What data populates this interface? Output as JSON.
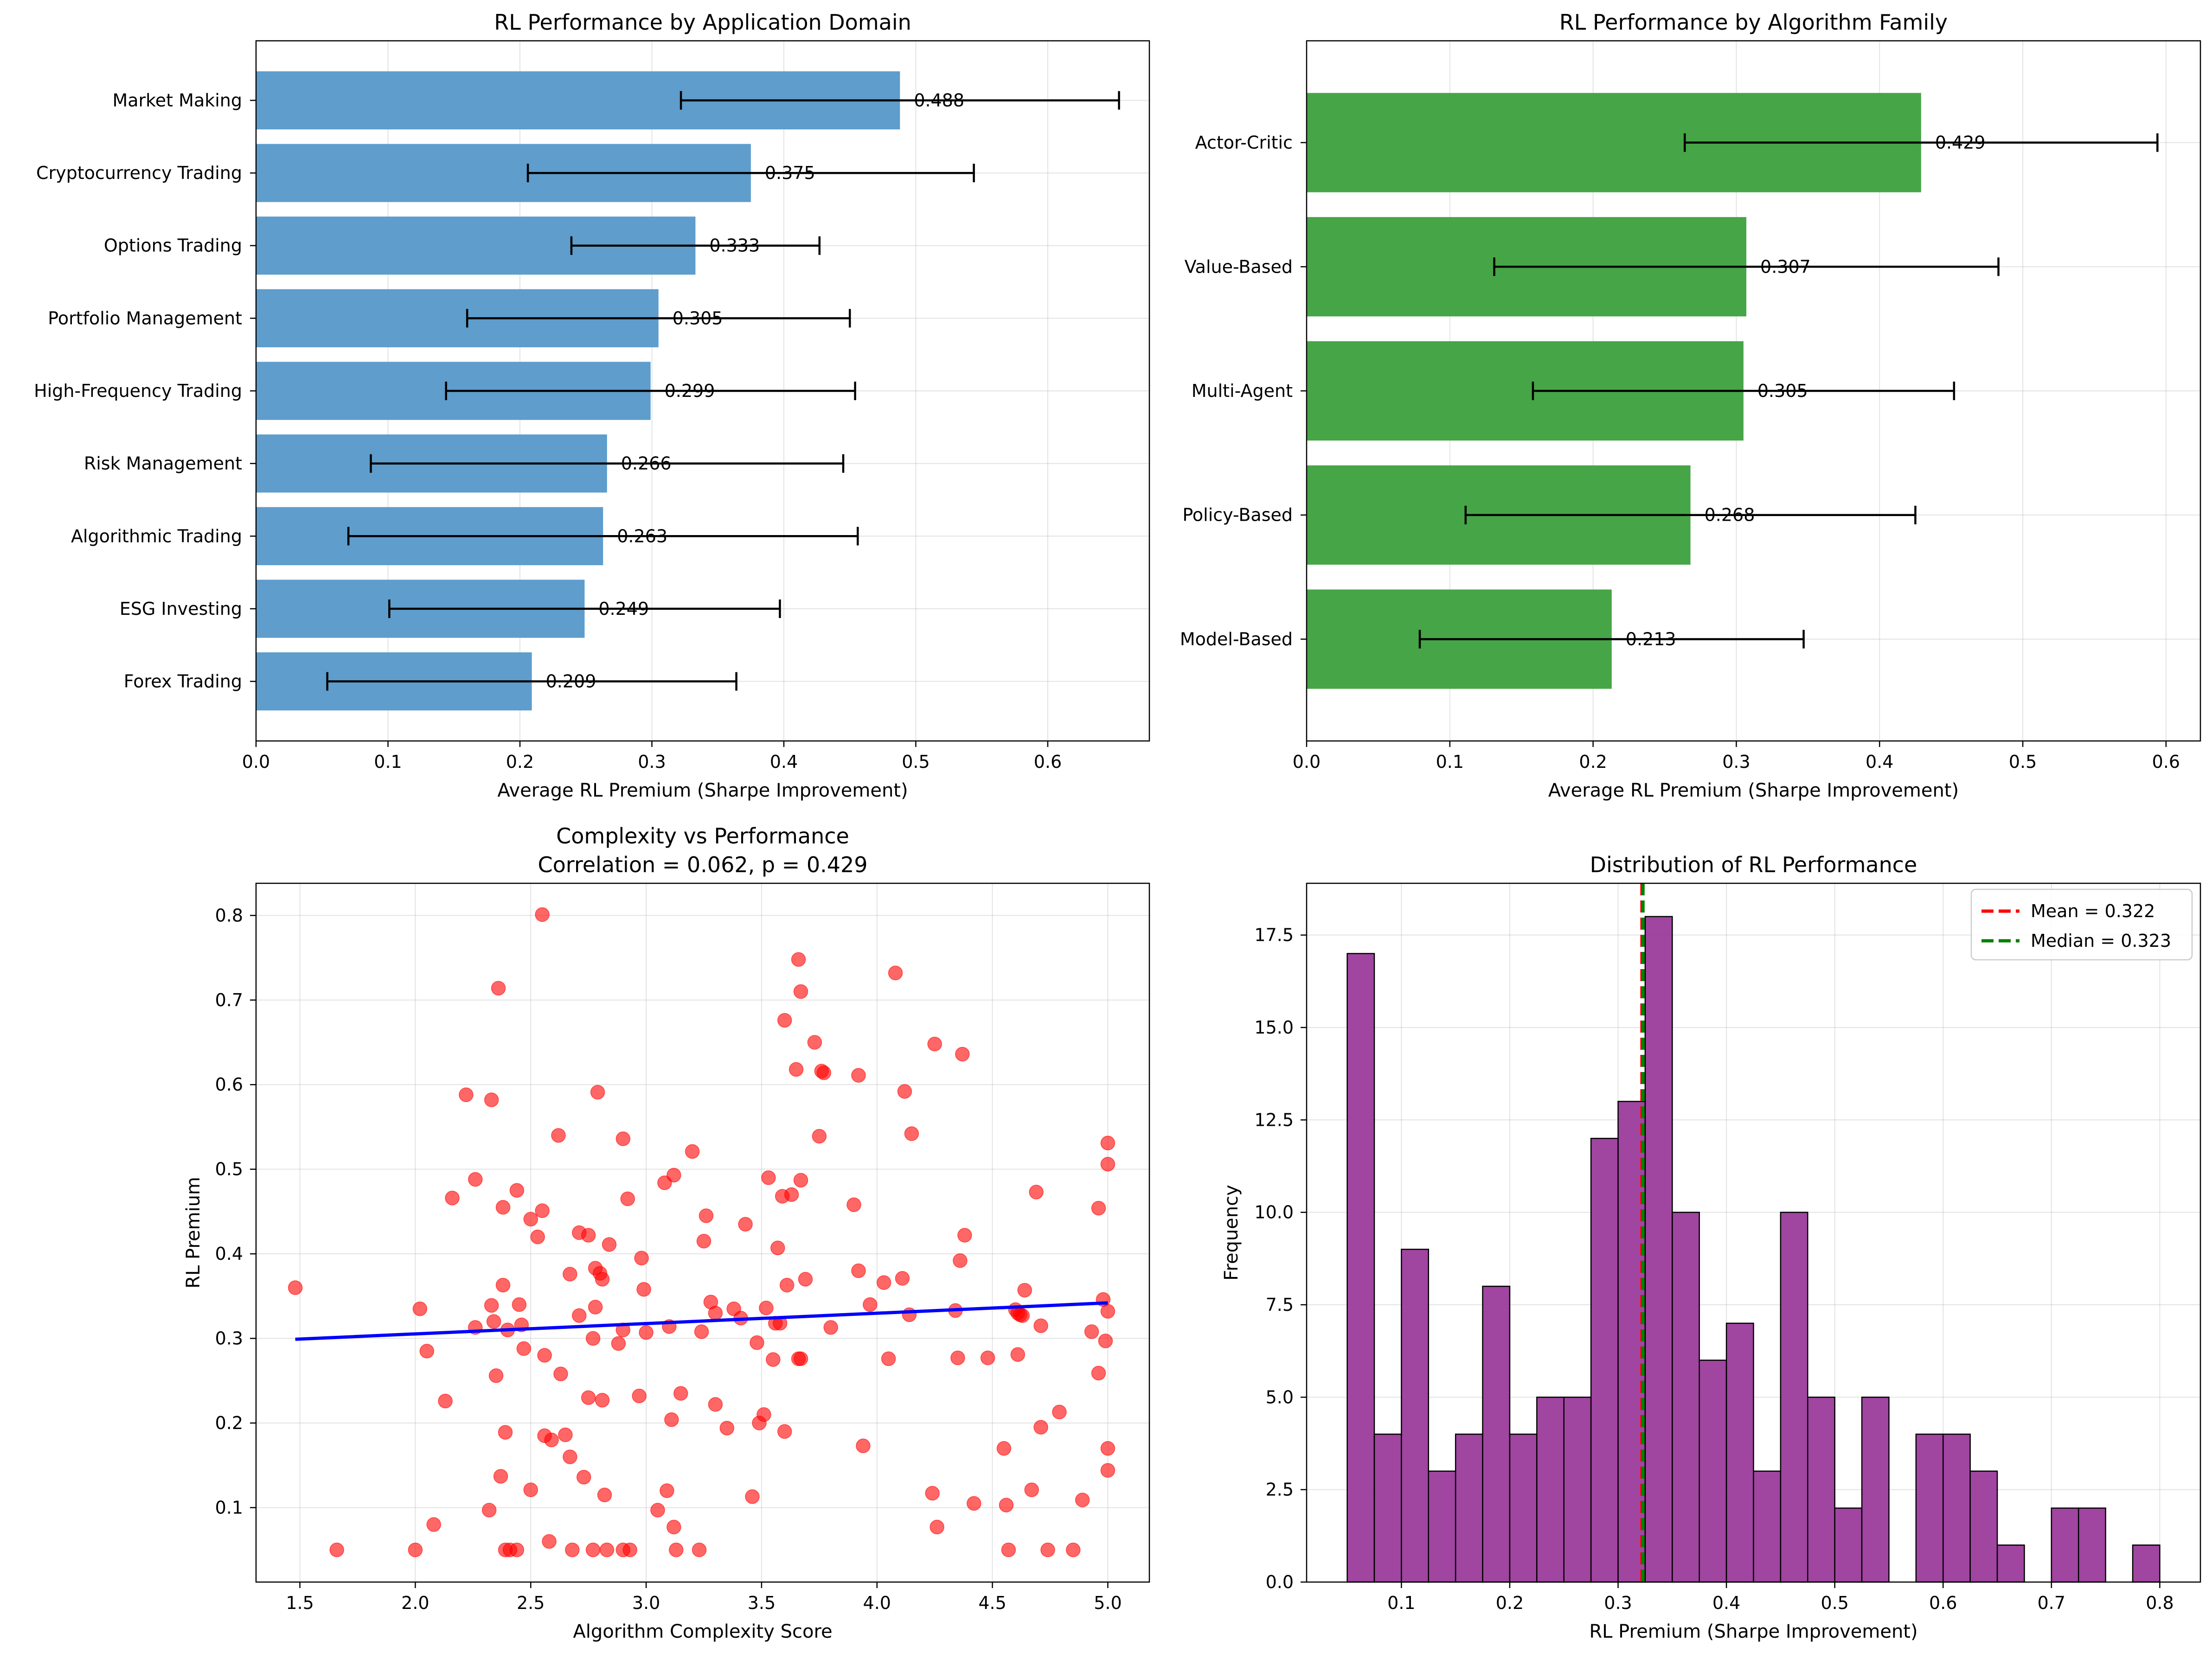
{
  "chart_data": [
    {
      "type": "bar",
      "orientation": "horizontal",
      "title": "RL Performance by Application Domain",
      "xlabel": "Average RL Premium (Sharpe Improvement)",
      "ylabel": "",
      "xlim": [
        0,
        0.677
      ],
      "xticks": [
        0.0,
        0.1,
        0.2,
        0.3,
        0.4,
        0.5,
        0.6
      ],
      "xtick_labels": [
        "0.0",
        "0.1",
        "0.2",
        "0.3",
        "0.4",
        "0.5",
        "0.6"
      ],
      "grid": true,
      "color": "#5e9dcc",
      "categories": [
        "Market Making",
        "Cryptocurrency Trading",
        "Options Trading",
        "Portfolio Management",
        "High-Frequency Trading",
        "Risk Management",
        "Algorithmic Trading",
        "ESG Investing",
        "Forex Trading"
      ],
      "values": [
        0.488,
        0.375,
        0.333,
        0.305,
        0.299,
        0.266,
        0.263,
        0.249,
        0.209
      ],
      "value_labels": [
        "0.488",
        "0.375",
        "0.333",
        "0.305",
        "0.299",
        "0.266",
        "0.263",
        "0.249",
        "0.209"
      ],
      "errors": [
        0.166,
        0.169,
        0.094,
        0.145,
        0.155,
        0.179,
        0.193,
        0.148,
        0.155
      ]
    },
    {
      "type": "bar",
      "orientation": "horizontal",
      "title": "RL Performance by Algorithm Family",
      "xlabel": "Average RL Premium (Sharpe Improvement)",
      "ylabel": "",
      "xlim": [
        0,
        0.624
      ],
      "xticks": [
        0.0,
        0.1,
        0.2,
        0.3,
        0.4,
        0.5,
        0.6
      ],
      "xtick_labels": [
        "0.0",
        "0.1",
        "0.2",
        "0.3",
        "0.4",
        "0.5",
        "0.6"
      ],
      "grid": true,
      "color": "#46a546",
      "categories": [
        "Actor-Critic",
        "Value-Based",
        "Multi-Agent",
        "Policy-Based",
        "Model-Based"
      ],
      "values": [
        0.429,
        0.307,
        0.305,
        0.268,
        0.213
      ],
      "value_labels": [
        "0.429",
        "0.307",
        "0.305",
        "0.268",
        "0.213"
      ],
      "errors": [
        0.165,
        0.176,
        0.147,
        0.157,
        0.134
      ]
    },
    {
      "type": "scatter",
      "title": "Complexity vs Performance",
      "subtitle": "Correlation = 0.062, p = 0.429",
      "xlabel": "Algorithm Complexity Score",
      "ylabel": "RL Premium",
      "xlim": [
        1.31,
        5.18
      ],
      "ylim": [
        0.012,
        0.838
      ],
      "xticks": [
        1.5,
        2.0,
        2.5,
        3.0,
        3.5,
        4.0,
        4.5,
        5.0
      ],
      "xtick_labels": [
        "1.5",
        "2.0",
        "2.5",
        "3.0",
        "3.5",
        "4.0",
        "4.5",
        "5.0"
      ],
      "yticks": [
        0.1,
        0.2,
        0.3,
        0.4,
        0.5,
        0.6,
        0.7,
        0.8
      ],
      "ytick_labels": [
        "0.1",
        "0.2",
        "0.3",
        "0.4",
        "0.5",
        "0.6",
        "0.7",
        "0.8"
      ],
      "grid": true,
      "point_color": "#ff0000",
      "trend_color": "#0000ff",
      "trend_line": {
        "x": [
          1.48,
          5.0
        ],
        "y": [
          0.299,
          0.342
        ]
      },
      "points": [
        [
          1.48,
          0.36
        ],
        [
          1.66,
          0.05
        ],
        [
          2.0,
          0.05
        ],
        [
          2.02,
          0.335
        ],
        [
          2.05,
          0.285
        ],
        [
          2.08,
          0.08
        ],
        [
          2.13,
          0.226
        ],
        [
          2.16,
          0.466
        ],
        [
          2.22,
          0.588
        ],
        [
          2.26,
          0.488
        ],
        [
          2.26,
          0.313
        ],
        [
          2.32,
          0.097
        ],
        [
          2.33,
          0.582
        ],
        [
          2.33,
          0.339
        ],
        [
          2.34,
          0.32
        ],
        [
          2.35,
          0.256
        ],
        [
          2.36,
          0.714
        ],
        [
          2.37,
          0.137
        ],
        [
          2.38,
          0.363
        ],
        [
          2.38,
          0.455
        ],
        [
          2.39,
          0.05
        ],
        [
          2.39,
          0.189
        ],
        [
          2.4,
          0.31
        ],
        [
          2.41,
          0.05
        ],
        [
          2.44,
          0.475
        ],
        [
          2.44,
          0.05
        ],
        [
          2.45,
          0.34
        ],
        [
          2.46,
          0.316
        ],
        [
          2.47,
          0.288
        ],
        [
          2.5,
          0.441
        ],
        [
          2.5,
          0.121
        ],
        [
          2.53,
          0.42
        ],
        [
          2.55,
          0.451
        ],
        [
          2.55,
          0.801
        ],
        [
          2.56,
          0.28
        ],
        [
          2.56,
          0.185
        ],
        [
          2.58,
          0.06
        ],
        [
          2.59,
          0.18
        ],
        [
          2.62,
          0.54
        ],
        [
          2.63,
          0.258
        ],
        [
          2.65,
          0.186
        ],
        [
          2.67,
          0.16
        ],
        [
          2.67,
          0.376
        ],
        [
          2.68,
          0.05
        ],
        [
          2.71,
          0.425
        ],
        [
          2.71,
          0.327
        ],
        [
          2.73,
          0.136
        ],
        [
          2.75,
          0.422
        ],
        [
          2.75,
          0.23
        ],
        [
          2.77,
          0.05
        ],
        [
          2.77,
          0.3
        ],
        [
          2.78,
          0.337
        ],
        [
          2.78,
          0.383
        ],
        [
          2.79,
          0.591
        ],
        [
          2.8,
          0.377
        ],
        [
          2.81,
          0.37
        ],
        [
          2.81,
          0.227
        ],
        [
          2.82,
          0.115
        ],
        [
          2.83,
          0.05
        ],
        [
          2.84,
          0.411
        ],
        [
          2.88,
          0.294
        ],
        [
          2.9,
          0.536
        ],
        [
          2.9,
          0.05
        ],
        [
          2.9,
          0.31
        ],
        [
          2.92,
          0.465
        ],
        [
          2.93,
          0.05
        ],
        [
          2.97,
          0.232
        ],
        [
          2.98,
          0.395
        ],
        [
          2.99,
          0.358
        ],
        [
          3.0,
          0.307
        ],
        [
          3.05,
          0.097
        ],
        [
          3.08,
          0.484
        ],
        [
          3.09,
          0.12
        ],
        [
          3.1,
          0.314
        ],
        [
          3.11,
          0.204
        ],
        [
          3.12,
          0.493
        ],
        [
          3.12,
          0.077
        ],
        [
          3.13,
          0.05
        ],
        [
          3.15,
          0.235
        ],
        [
          3.2,
          0.521
        ],
        [
          3.23,
          0.05
        ],
        [
          3.24,
          0.308
        ],
        [
          3.25,
          0.415
        ],
        [
          3.26,
          0.445
        ],
        [
          3.28,
          0.343
        ],
        [
          3.3,
          0.222
        ],
        [
          3.3,
          0.33
        ],
        [
          3.35,
          0.194
        ],
        [
          3.38,
          0.335
        ],
        [
          3.41,
          0.324
        ],
        [
          3.43,
          0.435
        ],
        [
          3.46,
          0.113
        ],
        [
          3.48,
          0.295
        ],
        [
          3.49,
          0.2
        ],
        [
          3.51,
          0.21
        ],
        [
          3.52,
          0.336
        ],
        [
          3.53,
          0.49
        ],
        [
          3.55,
          0.275
        ],
        [
          3.56,
          0.318
        ],
        [
          3.57,
          0.407
        ],
        [
          3.58,
          0.318
        ],
        [
          3.59,
          0.468
        ],
        [
          3.6,
          0.676
        ],
        [
          3.6,
          0.19
        ],
        [
          3.61,
          0.363
        ],
        [
          3.63,
          0.47
        ],
        [
          3.65,
          0.618
        ],
        [
          3.66,
          0.748
        ],
        [
          3.66,
          0.276
        ],
        [
          3.67,
          0.71
        ],
        [
          3.67,
          0.487
        ],
        [
          3.67,
          0.276
        ],
        [
          3.69,
          0.37
        ],
        [
          3.73,
          0.65
        ],
        [
          3.75,
          0.539
        ],
        [
          3.76,
          0.616
        ],
        [
          3.77,
          0.614
        ],
        [
          3.8,
          0.313
        ],
        [
          3.9,
          0.458
        ],
        [
          3.92,
          0.611
        ],
        [
          3.92,
          0.38
        ],
        [
          3.94,
          0.173
        ],
        [
          3.97,
          0.34
        ],
        [
          4.03,
          0.366
        ],
        [
          4.05,
          0.276
        ],
        [
          4.08,
          0.732
        ],
        [
          4.11,
          0.371
        ],
        [
          4.12,
          0.592
        ],
        [
          4.14,
          0.328
        ],
        [
          4.15,
          0.542
        ],
        [
          4.24,
          0.117
        ],
        [
          4.25,
          0.648
        ],
        [
          4.26,
          0.077
        ],
        [
          4.34,
          0.333
        ],
        [
          4.35,
          0.277
        ],
        [
          4.36,
          0.392
        ],
        [
          4.37,
          0.636
        ],
        [
          4.38,
          0.422
        ],
        [
          4.42,
          0.105
        ],
        [
          4.48,
          0.277
        ],
        [
          4.55,
          0.17
        ],
        [
          4.56,
          0.103
        ],
        [
          4.57,
          0.05
        ],
        [
          4.6,
          0.334
        ],
        [
          4.61,
          0.33
        ],
        [
          4.61,
          0.281
        ],
        [
          4.62,
          0.328
        ],
        [
          4.63,
          0.327
        ],
        [
          4.64,
          0.357
        ],
        [
          4.67,
          0.121
        ],
        [
          4.69,
          0.473
        ],
        [
          4.71,
          0.315
        ],
        [
          4.71,
          0.195
        ],
        [
          4.74,
          0.05
        ],
        [
          4.79,
          0.213
        ],
        [
          4.85,
          0.05
        ],
        [
          4.89,
          0.109
        ],
        [
          4.93,
          0.308
        ],
        [
          4.96,
          0.259
        ],
        [
          4.96,
          0.454
        ],
        [
          4.98,
          0.346
        ],
        [
          4.99,
          0.297
        ],
        [
          5.0,
          0.531
        ],
        [
          5.0,
          0.506
        ],
        [
          5.0,
          0.332
        ],
        [
          5.0,
          0.17
        ],
        [
          5.0,
          0.144
        ]
      ]
    },
    {
      "type": "histogram",
      "title": "Distribution of RL Performance",
      "xlabel": "RL Premium (Sharpe Improvement)",
      "ylabel": "Frequency",
      "xlim": [
        0.0125,
        0.8375
      ],
      "ylim": [
        0,
        18.9
      ],
      "xticks": [
        0.1,
        0.2,
        0.3,
        0.4,
        0.5,
        0.6,
        0.7,
        0.8
      ],
      "xtick_labels": [
        "0.1",
        "0.2",
        "0.3",
        "0.4",
        "0.5",
        "0.6",
        "0.7",
        "0.8"
      ],
      "yticks": [
        0.0,
        2.5,
        5.0,
        7.5,
        10.0,
        12.5,
        15.0,
        17.5
      ],
      "ytick_labels": [
        "0.0",
        "2.5",
        "5.0",
        "7.5",
        "10.0",
        "12.5",
        "15.0",
        "17.5"
      ],
      "grid": true,
      "bar_color": "#9b3b9b",
      "bin_start": 0.05,
      "bin_width": 0.025,
      "counts": [
        17,
        4,
        9,
        3,
        4,
        8,
        4,
        5,
        5,
        12,
        13,
        18,
        10,
        6,
        7,
        3,
        10,
        5,
        2,
        5,
        0,
        4,
        4,
        3,
        1,
        0,
        2,
        2,
        0,
        1
      ],
      "mean": 0.322,
      "median": 0.323,
      "mean_color": "#ff0000",
      "median_color": "#008000",
      "legend": [
        "Mean = 0.322",
        "Median = 0.323"
      ],
      "legend_position": "top-right"
    }
  ]
}
